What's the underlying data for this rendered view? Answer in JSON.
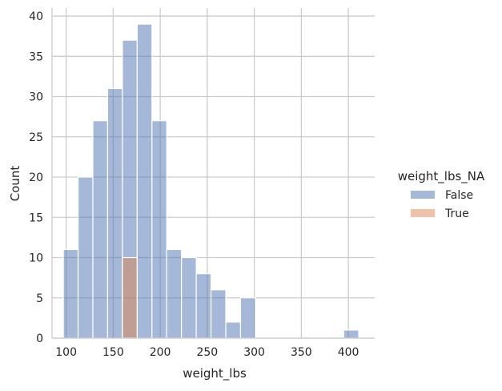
{
  "chart_data": {
    "type": "bar",
    "xlabel": "weight_lbs",
    "ylabel": "Count",
    "xlim": [
      85,
      428
    ],
    "ylim": [
      0,
      41
    ],
    "xticks": [
      100,
      150,
      200,
      250,
      300,
      350,
      400
    ],
    "yticks": [
      0,
      5,
      10,
      15,
      20,
      25,
      30,
      35,
      40
    ],
    "grid": true,
    "legend": {
      "title": "weight_lbs_NA",
      "placement": "right",
      "entries": [
        "False",
        "True"
      ]
    },
    "series": [
      {
        "name": "False",
        "color": "#4c72b0",
        "bins": [
          {
            "x0": 97,
            "x1": 112.7,
            "count": 11
          },
          {
            "x0": 112.7,
            "x1": 128.4,
            "count": 20
          },
          {
            "x0": 128.4,
            "x1": 144.1,
            "count": 27
          },
          {
            "x0": 144.1,
            "x1": 159.8,
            "count": 31
          },
          {
            "x0": 159.8,
            "x1": 175.5,
            "count": 37
          },
          {
            "x0": 175.5,
            "x1": 191.2,
            "count": 39
          },
          {
            "x0": 191.2,
            "x1": 206.9,
            "count": 27
          },
          {
            "x0": 206.9,
            "x1": 222.6,
            "count": 11
          },
          {
            "x0": 222.6,
            "x1": 238.3,
            "count": 10
          },
          {
            "x0": 238.3,
            "x1": 254,
            "count": 8
          },
          {
            "x0": 254,
            "x1": 269.7,
            "count": 6
          },
          {
            "x0": 269.7,
            "x1": 285.4,
            "count": 2
          },
          {
            "x0": 285.4,
            "x1": 301.1,
            "count": 5
          },
          {
            "x0": 395.0,
            "x1": 411.0,
            "count": 1
          }
        ]
      },
      {
        "name": "True",
        "color": "#dd8452",
        "bins": [
          {
            "x0": 159.8,
            "x1": 175.5,
            "count": 10
          }
        ]
      }
    ]
  }
}
